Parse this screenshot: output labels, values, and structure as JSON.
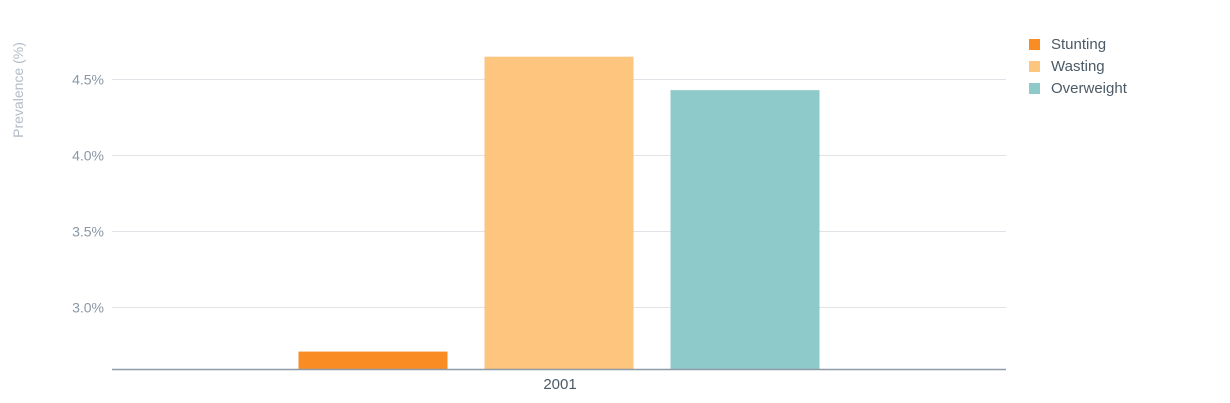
{
  "chart_data": {
    "type": "bar",
    "title": "",
    "xlabel": "",
    "ylabel": "Prevalence (%)",
    "categories": [
      "2001"
    ],
    "series": [
      {
        "name": "Stunting",
        "color": "#f98d23",
        "values": [
          2.71
        ]
      },
      {
        "name": "Wasting",
        "color": "#fec57f",
        "values": [
          4.65
        ]
      },
      {
        "name": "Overweight",
        "color": "#8ecaca",
        "values": [
          4.43
        ]
      }
    ],
    "ylim": [
      2.6,
      4.8
    ],
    "yticks": [
      3.0,
      3.5,
      4.0,
      4.5
    ],
    "ytick_labels": [
      "3.0%",
      "3.5%",
      "4.0%",
      "4.5%"
    ],
    "grid": true,
    "legend_position": "top-right"
  }
}
